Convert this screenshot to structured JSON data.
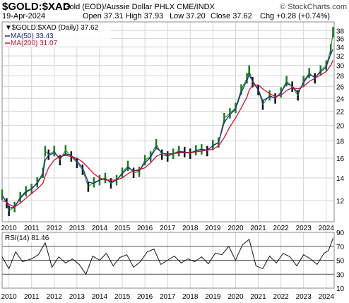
{
  "header": {
    "symbol": "$GOLD:$XAD",
    "description": "Gold (EOD)/Aussie Dollar PHLX  CME/INDX",
    "brand": "© StockCharts.com",
    "date": "19-Apr-2024",
    "open_label": "Open",
    "open": "37.31",
    "high_label": "High",
    "high": "37.93",
    "low_label": "Low",
    "low": "37.20",
    "close_label": "Close",
    "close": "37.62",
    "chg_label": "Chg",
    "chg": "+0.28 (+0.74%)"
  },
  "legend": {
    "price": "▼$GOLD:$XAD (Daily) 37.62",
    "ma50": "MA(50) 33.43",
    "ma200": "MA(200) 31.07",
    "rsi": "RSI(14) 81.46"
  },
  "colors": {
    "ma50": "#1f2a8c",
    "ma200": "#cc1133",
    "up": "#1b7d1b",
    "down": "#111111",
    "grid": "#d4d4d4"
  },
  "chart_data": [
    {
      "type": "line",
      "name": "price",
      "scale": "log",
      "x": [
        2009.7,
        2009.9,
        2010.0,
        2010.25,
        2010.5,
        2010.75,
        2011.0,
        2011.25,
        2011.5,
        2011.6,
        2011.75,
        2012.0,
        2012.25,
        2012.5,
        2012.75,
        2013.0,
        2013.25,
        2013.5,
        2013.75,
        2014.0,
        2014.25,
        2014.5,
        2014.75,
        2015.0,
        2015.25,
        2015.5,
        2015.75,
        2016.0,
        2016.25,
        2016.5,
        2016.75,
        2017.0,
        2017.25,
        2017.5,
        2017.75,
        2018.0,
        2018.25,
        2018.5,
        2018.75,
        2019.0,
        2019.25,
        2019.5,
        2019.75,
        2020.0,
        2020.25,
        2020.5,
        2020.6,
        2020.75,
        2021.0,
        2021.2,
        2021.5,
        2021.75,
        2022.0,
        2022.25,
        2022.5,
        2022.75,
        2023.0,
        2023.25,
        2023.5,
        2023.75,
        2024.0,
        2024.2,
        2024.3
      ],
      "y": [
        12.5,
        11.8,
        11.2,
        11.5,
        12.3,
        12.8,
        13.0,
        13.6,
        14.5,
        16.8,
        16.4,
        16.8,
        15.8,
        16.9,
        16.2,
        15.5,
        14.8,
        13.2,
        13.6,
        13.8,
        14.0,
        13.5,
        13.8,
        14.5,
        15.2,
        14.5,
        14.6,
        15.8,
        16.2,
        17.6,
        16.4,
        16.2,
        16.5,
        16.8,
        16.7,
        16.5,
        16.9,
        17.0,
        16.8,
        17.5,
        17.8,
        21.0,
        21.7,
        22.5,
        25.5,
        27.5,
        29.0,
        26.8,
        25.4,
        23.0,
        24.5,
        24.0,
        25.0,
        27.0,
        26.0,
        24.5,
        27.0,
        28.5,
        27.5,
        29.0,
        30.0,
        33.5,
        37.62
      ],
      "ma50": [
        12.4,
        11.9,
        11.4,
        11.5,
        12.2,
        12.7,
        13.0,
        13.5,
        14.3,
        15.8,
        16.3,
        16.6,
        16.0,
        16.5,
        16.3,
        15.7,
        15.0,
        13.6,
        13.5,
        13.8,
        13.9,
        13.6,
        13.8,
        14.4,
        15.0,
        14.7,
        14.7,
        15.5,
        16.1,
        17.2,
        16.6,
        16.3,
        16.5,
        16.7,
        16.7,
        16.6,
        16.8,
        17.0,
        16.9,
        17.4,
        17.8,
        20.4,
        21.5,
        22.3,
        25.0,
        27.1,
        28.1,
        27.0,
        25.5,
        23.6,
        24.3,
        24.1,
        24.9,
        26.6,
        26.1,
        24.9,
        26.7,
        28.2,
        27.7,
        28.7,
        29.7,
        32.5,
        33.43
      ],
      "ma200": [
        12.0,
        11.9,
        11.7,
        11.5,
        11.8,
        12.2,
        12.6,
        13.0,
        13.5,
        14.2,
        15.0,
        15.8,
        16.2,
        16.3,
        16.2,
        16.0,
        15.6,
        15.0,
        14.4,
        14.0,
        13.8,
        13.8,
        13.8,
        14.0,
        14.4,
        14.7,
        14.8,
        15.0,
        15.5,
        16.2,
        16.5,
        16.5,
        16.5,
        16.6,
        16.6,
        16.6,
        16.7,
        16.8,
        16.9,
        17.0,
        17.4,
        18.4,
        19.8,
        21.0,
        22.5,
        24.2,
        25.4,
        26.2,
        26.3,
        25.6,
        24.8,
        24.3,
        24.5,
        25.3,
        25.8,
        25.6,
        26.0,
        26.9,
        27.5,
        28.1,
        28.8,
        30.0,
        31.07
      ]
    },
    {
      "type": "line",
      "name": "RSI(14)",
      "x": [
        2009.7,
        2010.0,
        2010.3,
        2010.6,
        2011.0,
        2011.3,
        2011.6,
        2011.9,
        2012.2,
        2012.5,
        2012.8,
        2013.1,
        2013.4,
        2013.7,
        2014.0,
        2014.3,
        2014.6,
        2014.9,
        2015.2,
        2015.5,
        2015.8,
        2016.1,
        2016.4,
        2016.7,
        2017.0,
        2017.3,
        2017.6,
        2017.9,
        2018.2,
        2018.5,
        2018.8,
        2019.1,
        2019.4,
        2019.7,
        2020.0,
        2020.3,
        2020.6,
        2020.9,
        2021.2,
        2021.5,
        2021.8,
        2022.1,
        2022.4,
        2022.7,
        2023.0,
        2023.3,
        2023.6,
        2023.9,
        2024.1,
        2024.3
      ],
      "y": [
        55,
        38,
        62,
        48,
        52,
        58,
        75,
        40,
        55,
        46,
        52,
        44,
        30,
        56,
        50,
        60,
        42,
        54,
        58,
        40,
        48,
        62,
        66,
        44,
        50,
        56,
        46,
        52,
        48,
        55,
        45,
        60,
        58,
        70,
        50,
        72,
        80,
        42,
        38,
        56,
        46,
        60,
        55,
        42,
        58,
        52,
        44,
        60,
        64,
        81.46
      ],
      "ylim": [
        10,
        90
      ],
      "reference_lines": [
        30,
        50,
        70
      ]
    }
  ],
  "axes": {
    "price_ticks": [
      "12",
      "14",
      "16",
      "18",
      "20",
      "22",
      "24",
      "26",
      "28",
      "30",
      "32",
      "34",
      "36",
      "38"
    ],
    "rsi_ticks": [
      "10",
      "30",
      "50",
      "70",
      "90"
    ],
    "x_ticks": [
      "2010",
      "2011",
      "2012",
      "2013",
      "2014",
      "2015",
      "2016",
      "2017",
      "2018",
      "2019",
      "2020",
      "2021",
      "2022",
      "2023",
      "2024"
    ]
  }
}
